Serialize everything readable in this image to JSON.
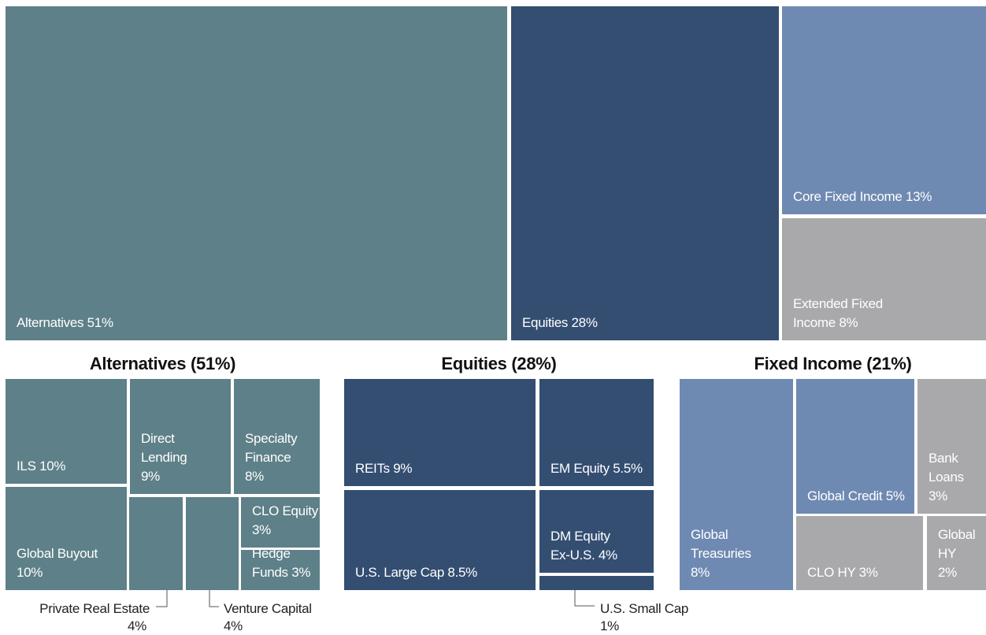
{
  "chart_data": [
    {
      "type": "treemap",
      "categories": [
        "Alternatives",
        "Equities",
        "Core Fixed Income",
        "Extended Fixed Income"
      ],
      "values": [
        51,
        28,
        13,
        8
      ],
      "value_labels": [
        "51%",
        "28%",
        "13%",
        "8%"
      ],
      "colors": [
        "#5e8088",
        "#344e72",
        "#6f8ab2",
        "#a9a9ab"
      ]
    },
    {
      "type": "treemap",
      "title": "Alternatives (51%)",
      "categories": [
        "ILS",
        "Direct Lending",
        "Specialty Finance",
        "Global Buyout",
        "Private Real Estate",
        "Venture Capital",
        "CLO Equity",
        "Hedge Funds"
      ],
      "values": [
        10,
        9,
        8,
        10,
        4,
        4,
        3,
        3
      ],
      "value_labels": [
        "10%",
        "9%",
        "8%",
        "10%",
        "4%",
        "4%",
        "3%",
        "3%"
      ],
      "color": "#5e8088"
    },
    {
      "type": "treemap",
      "title": "Equities (28%)",
      "categories": [
        "REITs",
        "EM Equity",
        "U.S. Large Cap",
        "DM Equity Ex-U.S.",
        "U.S. Small Cap"
      ],
      "values": [
        9,
        5.5,
        8.5,
        4,
        1
      ],
      "value_labels": [
        "9%",
        "5.5%",
        "8.5%",
        "4%",
        "1%"
      ],
      "color": "#344e72"
    },
    {
      "type": "treemap",
      "title": "Fixed Income (21%)",
      "categories": [
        "Global Treasuries",
        "Global Credit",
        "Bank Loans",
        "CLO HY",
        "Global HY"
      ],
      "values": [
        8,
        5,
        3,
        3,
        2
      ],
      "value_labels": [
        "8%",
        "5%",
        "3%",
        "3%",
        "2%"
      ],
      "colors": [
        "#6f8ab2",
        "#6f8ab2",
        "#a9a9ab",
        "#a9a9ab",
        "#a9a9ab"
      ]
    }
  ]
}
